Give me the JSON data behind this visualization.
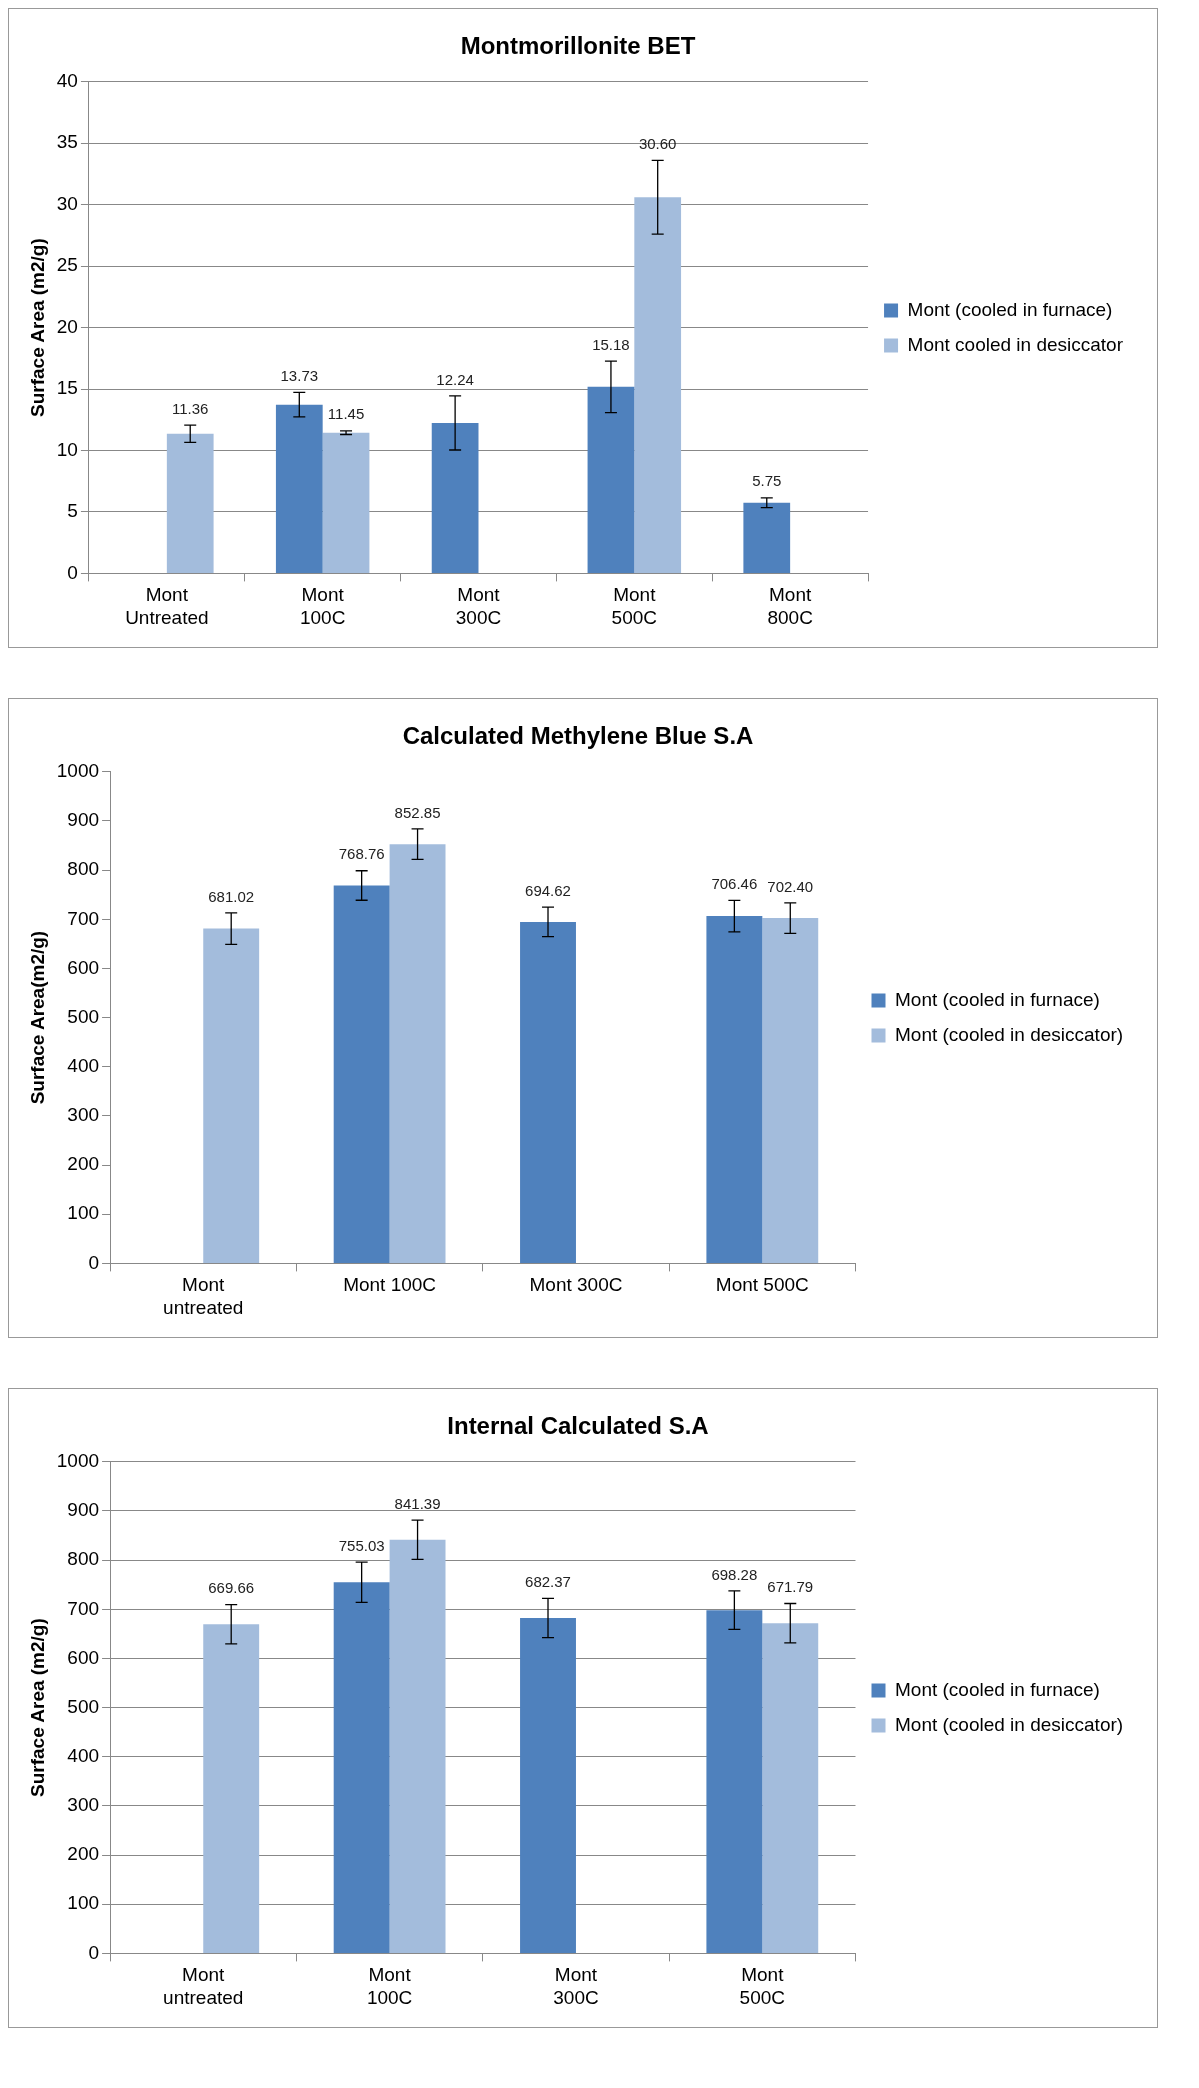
{
  "chart_data": [
    {
      "type": "bar",
      "title": "Montmorillonite BET",
      "ylabel": "Surface Area (m2/g)",
      "categories": [
        "Mont\nUntreated",
        "Mont\n100C",
        "Mont\n300C",
        "Mont\n500C",
        "Mont\n800C"
      ],
      "ylim": [
        0,
        40
      ],
      "yticks": [
        0,
        5,
        10,
        15,
        20,
        25,
        30,
        35,
        40
      ],
      "grid": "y",
      "legend": "right",
      "series": [
        {
          "name": "Mont (cooled in furnace)",
          "color": "#4f81bd",
          "values": [
            null,
            13.73,
            12.24,
            15.18,
            5.75
          ],
          "errors": [
            null,
            1.0,
            2.2,
            2.1,
            0.4
          ],
          "value_labels": [
            null,
            "13.73",
            "12.24",
            "15.18",
            "5.75"
          ]
        },
        {
          "name": "Mont cooled in desiccator",
          "color": "#a3bcdc",
          "values": [
            11.36,
            11.45,
            null,
            30.6,
            null
          ],
          "errors": [
            0.7,
            0.15,
            null,
            3.0,
            null
          ],
          "value_labels": [
            "11.36",
            "11.45",
            null,
            "30.60",
            null
          ]
        }
      ]
    },
    {
      "type": "bar",
      "title": "Calculated Methylene Blue S.A",
      "ylabel": "Surface Area(m2/g)",
      "categories": [
        "Mont\nuntreated",
        "Mont 100C",
        "Mont 300C",
        "Mont 500C"
      ],
      "ylim": [
        0,
        1000
      ],
      "yticks": [
        0,
        100,
        200,
        300,
        400,
        500,
        600,
        700,
        800,
        900,
        1000
      ],
      "grid": false,
      "legend": "right",
      "series": [
        {
          "name": "Mont (cooled in furnace)",
          "color": "#4f81bd",
          "values": [
            null,
            768.76,
            694.62,
            706.46
          ],
          "errors": [
            null,
            30,
            30,
            32
          ],
          "value_labels": [
            null,
            "768.76",
            "694.62",
            "706.46"
          ]
        },
        {
          "name": "Mont (cooled in desiccator)",
          "color": "#a3bcdc",
          "values": [
            681.02,
            852.85,
            null,
            702.4
          ],
          "errors": [
            32,
            31,
            null,
            31
          ],
          "value_labels": [
            "681.02",
            "852.85",
            null,
            "702.40"
          ]
        }
      ]
    },
    {
      "type": "bar",
      "title": "Internal Calculated S.A",
      "ylabel": "Surface Area (m2/g)",
      "categories": [
        "Mont\nuntreated",
        "Mont\n100C",
        "Mont\n300C",
        "Mont\n500C"
      ],
      "ylim": [
        0,
        1000
      ],
      "yticks": [
        0,
        100,
        200,
        300,
        400,
        500,
        600,
        700,
        800,
        900,
        1000
      ],
      "grid": "y",
      "legend": "right",
      "series": [
        {
          "name": "Mont (cooled in furnace)",
          "color": "#4f81bd",
          "values": [
            null,
            755.03,
            682.37,
            698.28
          ],
          "errors": [
            null,
            41,
            40,
            39
          ],
          "value_labels": [
            null,
            "755.03",
            "682.37",
            "698.28"
          ]
        },
        {
          "name": "Mont (cooled in desiccator)",
          "color": "#a3bcdc",
          "values": [
            669.66,
            841.39,
            null,
            671.79
          ],
          "errors": [
            40,
            40,
            null,
            40
          ],
          "value_labels": [
            "669.66",
            "841.39",
            null,
            "671.79"
          ]
        }
      ]
    }
  ]
}
